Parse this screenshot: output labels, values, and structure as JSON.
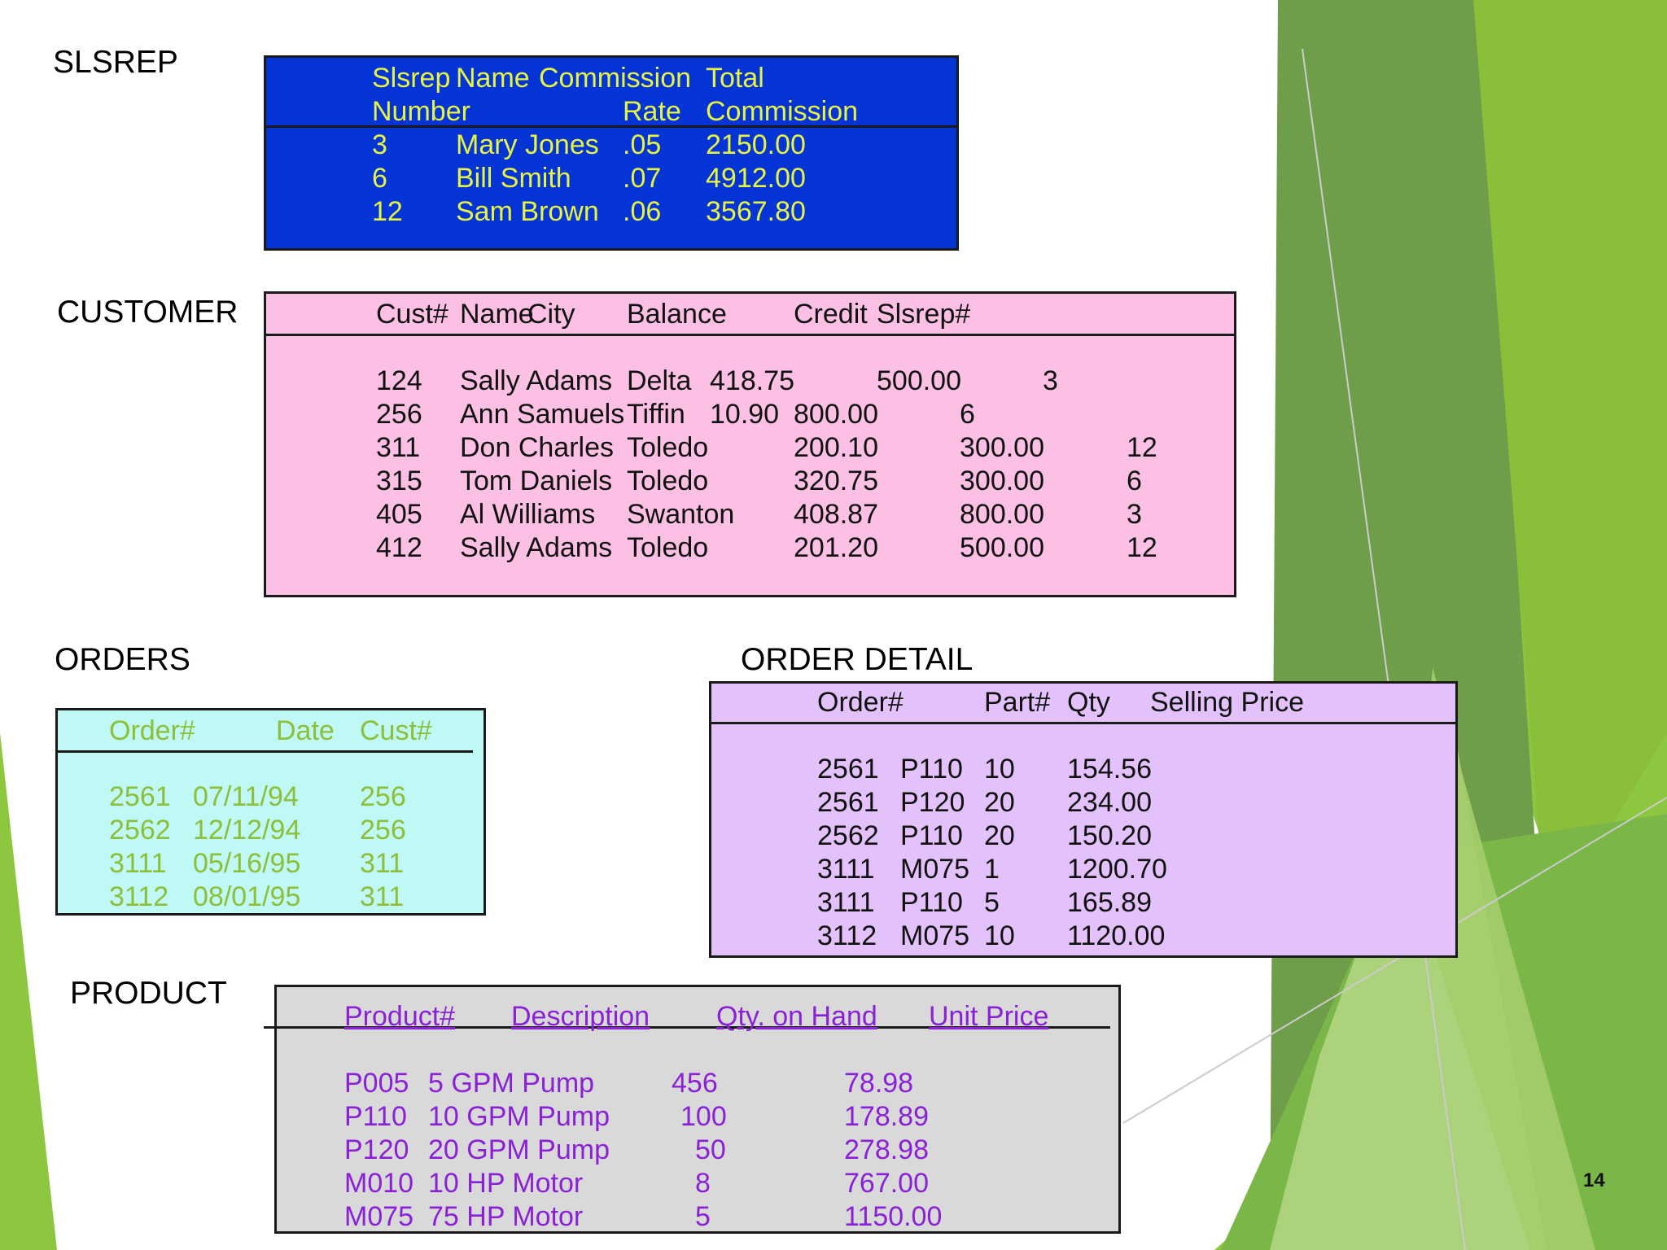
{
  "slide_number": "14",
  "colors": {
    "slsrep_bg": "#0433d6",
    "slsrep_text": "#e6f542",
    "customer_bg": "#fcc0e4",
    "orders_bg": "#bff8f4",
    "orders_text": "#8cbf3a",
    "order_detail_bg": "#e3c2fc",
    "product_bg": "#d9d9d9",
    "product_text": "#8a21d6",
    "accent_green": "#8dc63f"
  },
  "slsrep": {
    "title": "SLSREP",
    "headers": [
      [
        "Slsrep",
        "Number"
      ],
      [
        "Name",
        ""
      ],
      [
        "Commission",
        "Rate"
      ],
      [
        "Total",
        "Commission"
      ]
    ],
    "rows": [
      [
        "3",
        "Mary Jones",
        ".05",
        "2150.00"
      ],
      [
        "6",
        "Bill Smith",
        ".07",
        "4912.00"
      ],
      [
        "12",
        "Sam Brown",
        ".06",
        "3567.80"
      ]
    ]
  },
  "customer": {
    "title": "CUSTOMER",
    "headers": [
      "Cust#",
      "Name",
      "City",
      "Balance",
      "Credit",
      "Slsrep#"
    ],
    "rows": [
      [
        "124",
        "Sally Adams",
        "Delta",
        "418.75",
        "500.00",
        "3"
      ],
      [
        "256",
        "Ann Samuels",
        "Tiffin",
        "10.90",
        "800.00",
        "6"
      ],
      [
        "311",
        "Don Charles",
        "Toledo",
        "200.10",
        "300.00",
        "12"
      ],
      [
        "315",
        "Tom Daniels",
        "Toledo",
        "320.75",
        "300.00",
        "6"
      ],
      [
        "405",
        "Al Williams",
        "Swanton",
        "408.87",
        "800.00",
        "3"
      ],
      [
        "412",
        "Sally Adams",
        "Toledo",
        "201.20",
        "500.00",
        "12"
      ]
    ]
  },
  "orders": {
    "title": "ORDERS",
    "headers": [
      "Order#",
      "Date",
      "Cust#"
    ],
    "rows": [
      [
        "2561",
        "07/11/94",
        "256"
      ],
      [
        "2562",
        "12/12/94",
        "256"
      ],
      [
        "3111",
        "05/16/95",
        "311"
      ],
      [
        "3112",
        "08/01/95",
        "311"
      ]
    ]
  },
  "order_detail": {
    "title": "ORDER DETAIL",
    "headers": [
      "Order#",
      "Part#",
      "Qty",
      "Selling Price"
    ],
    "rows": [
      [
        "2561",
        "P110",
        "10",
        "154.56"
      ],
      [
        "2561",
        "P120",
        "20",
        "234.00"
      ],
      [
        "2562",
        "P110",
        "20",
        "150.20"
      ],
      [
        "3111",
        "M075",
        "1",
        "1200.70"
      ],
      [
        "3111",
        "P110",
        "5",
        "165.89"
      ],
      [
        "3112",
        "M075",
        "10",
        "1120.00"
      ]
    ]
  },
  "product": {
    "title": "PRODUCT",
    "headers": [
      "Product#",
      "Description",
      "Qty. on Hand",
      "Unit Price"
    ],
    "rows": [
      [
        "P005",
        "5 GPM Pump",
        "456",
        "78.98"
      ],
      [
        "P110",
        "10 GPM Pump",
        "100",
        "178.89"
      ],
      [
        "P120",
        "20 GPM Pump",
        "50",
        "278.98"
      ],
      [
        "M010",
        "10 HP Motor",
        "8",
        "767.00"
      ],
      [
        "M075",
        "75 HP Motor",
        "5",
        "1150.00"
      ]
    ]
  }
}
